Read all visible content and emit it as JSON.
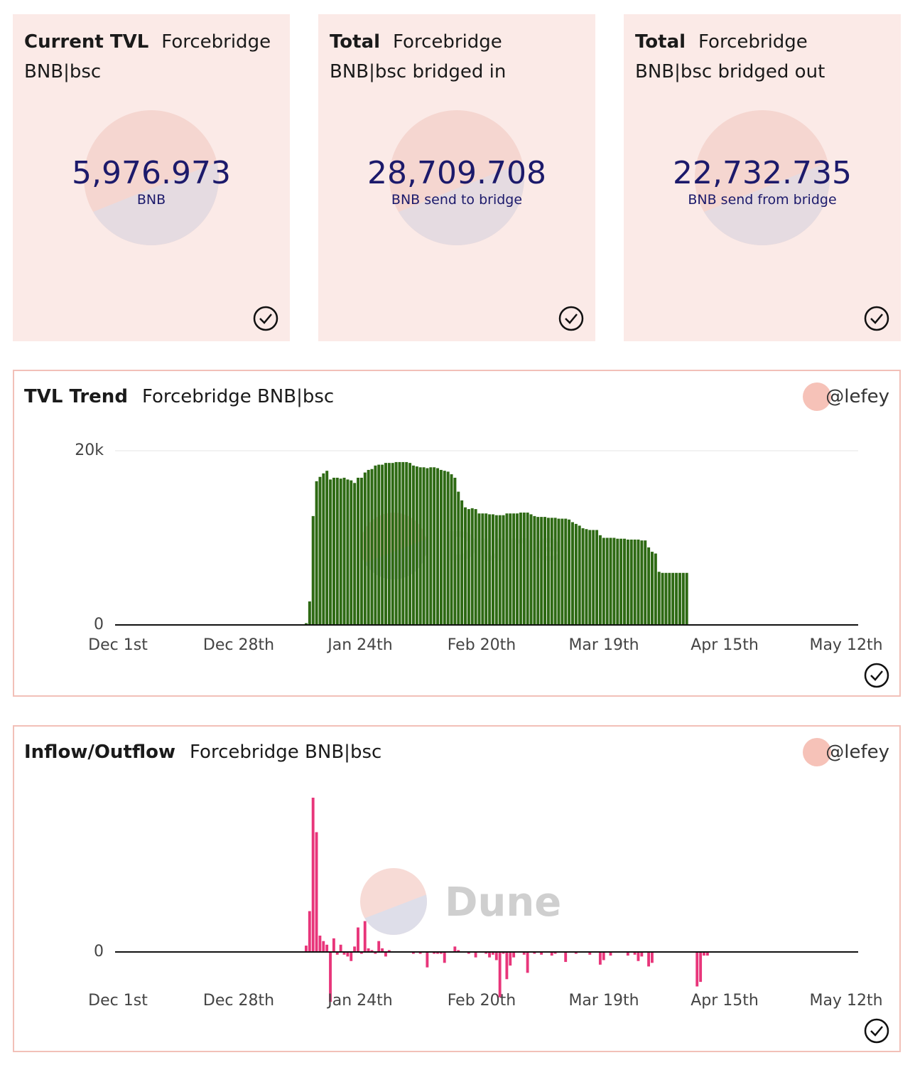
{
  "counters": [
    {
      "title_bold": "Current TVL",
      "title_rest": "Forcebridge BNB|bsc",
      "value": "5,976.973",
      "unit": "BNB"
    },
    {
      "title_bold": "Total",
      "title_rest": "Forcebridge BNB|bsc bridged in",
      "value": "28,709.708",
      "unit": "BNB send to bridge"
    },
    {
      "title_bold": "Total",
      "title_rest": "Forcebridge BNB|bsc bridged out",
      "value": "22,732.735",
      "unit": "BNB send from bridge"
    }
  ],
  "tvl_panel": {
    "title_bold": "TVL Trend",
    "title_rest": "Forcebridge BNB|bsc",
    "user": "@lefey"
  },
  "flow_panel": {
    "title_bold": "Inflow/Outflow",
    "title_rest": "Forcebridge BNB|bsc",
    "user": "@lefey"
  },
  "watermark": "Dune",
  "colors": {
    "tvl_bar": "#2e6a14",
    "inflow_bar": "#e8357a",
    "card_bg": "#fbeae7",
    "value_text": "#1c1a6b",
    "border": "#f2c0b8"
  },
  "chart_data": [
    {
      "type": "bar",
      "name": "TVL Trend",
      "x_range": [
        "2021-12-01",
        "2022-05-15"
      ],
      "x_ticks": [
        "Dec 1st",
        "Dec 28th",
        "Jan 24th",
        "Feb 20th",
        "Mar 19th",
        "Apr 15th",
        "May 12th"
      ],
      "y_ticks": [
        "0",
        "20k"
      ],
      "ylim": [
        0,
        21000
      ],
      "grid": true,
      "values": [
        200,
        2700,
        12500,
        16500,
        17000,
        17400,
        17700,
        16700,
        16900,
        16900,
        16800,
        16900,
        16700,
        16600,
        16300,
        16900,
        16900,
        17500,
        17800,
        17900,
        18300,
        18400,
        18400,
        18600,
        18600,
        18600,
        18700,
        18700,
        18700,
        18700,
        18600,
        18300,
        18200,
        18100,
        18100,
        18000,
        18100,
        18100,
        18000,
        17800,
        17700,
        17600,
        17300,
        16900,
        15300,
        14300,
        13500,
        13300,
        13400,
        13300,
        12800,
        12800,
        12800,
        12700,
        12700,
        12600,
        12600,
        12600,
        12800,
        12800,
        12800,
        12800,
        12900,
        12900,
        12900,
        12700,
        12500,
        12400,
        12400,
        12400,
        12300,
        12300,
        12300,
        12200,
        12200,
        12200,
        12100,
        11800,
        11600,
        11400,
        11100,
        11000,
        10900,
        10900,
        10900,
        10300,
        10000,
        10000,
        10000,
        10000,
        9900,
        9900,
        9900,
        9800,
        9800,
        9800,
        9800,
        9700,
        9700,
        8900,
        8400,
        8200,
        6100,
        5977,
        5977,
        5977,
        5977,
        5977,
        5977,
        5977,
        5977
      ]
    },
    {
      "type": "bar",
      "name": "Inflow/Outflow",
      "x_range": [
        "2021-12-01",
        "2022-05-15"
      ],
      "x_ticks": [
        "Dec 1st",
        "Dec 28th",
        "Jan 24th",
        "Feb 20th",
        "Mar 19th",
        "Apr 15th",
        "May 12th"
      ],
      "y_ticks": [
        "0"
      ],
      "ylim": [
        -7000,
        40000
      ],
      "values": [
        700,
        4500,
        17000,
        13200,
        1800,
        1200,
        800,
        -5500,
        1500,
        -300,
        800,
        -300,
        -500,
        -1000,
        600,
        2700,
        -200,
        3400,
        400,
        200,
        -200,
        1200,
        400,
        -500,
        200,
        0,
        0,
        0,
        0,
        0,
        0,
        -200,
        0,
        -200,
        0,
        -1700,
        0,
        -200,
        -200,
        -200,
        -1200,
        0,
        0,
        600,
        200,
        0,
        0,
        -200,
        0,
        -600,
        0,
        0,
        -200,
        -600,
        -300,
        -900,
        -5000,
        -200,
        -3000,
        -1500,
        -600,
        0,
        0,
        -300,
        -2300,
        0,
        -200,
        0,
        -300,
        0,
        0,
        -400,
        -200,
        0,
        0,
        -1100,
        0,
        0,
        -200,
        0,
        0,
        0,
        -300,
        0,
        0,
        -1400,
        -900,
        0,
        -400,
        0,
        0,
        0,
        0,
        -400,
        0,
        -300,
        -1000,
        -500,
        0,
        -1600,
        -1200,
        0,
        0,
        0,
        0,
        0,
        0,
        0,
        0,
        0,
        0,
        0,
        0,
        -3800,
        -3300,
        -400,
        -400,
        0,
        0,
        0
      ]
    }
  ]
}
